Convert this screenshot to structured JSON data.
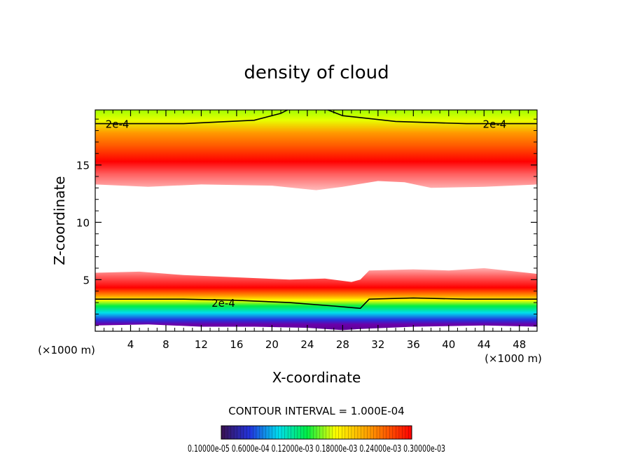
{
  "chart_data": {
    "type": "heatmap",
    "title": "density of cloud",
    "xlabel": "X-coordinate",
    "ylabel": "Z-coordinate",
    "x_unit_left": "(×1000 m)",
    "x_unit_right": "(×1000 m)",
    "xlim": [
      0,
      50
    ],
    "ylim": [
      0.5,
      19.8
    ],
    "x_ticks": [
      4,
      8,
      12,
      16,
      20,
      24,
      28,
      32,
      36,
      40,
      44,
      48
    ],
    "x_tick_labels": [
      "4",
      "8",
      "12",
      "16",
      "20",
      "24",
      "28",
      "32",
      "36",
      "40",
      "44",
      "48"
    ],
    "y_ticks": [
      5,
      10,
      15
    ],
    "y_tick_labels": [
      "5",
      "10",
      "15"
    ],
    "contour_interval_text": "CONTOUR INTERVAL = 1.000E-04",
    "contour_labels": [
      {
        "text": "2e-4",
        "x": 2.5,
        "z": 18.6
      },
      {
        "text": "2e-4",
        "x": 45.2,
        "z": 18.6
      },
      {
        "text": "2e-4",
        "x": 14.5,
        "z": 3.0
      }
    ],
    "colorbar_labels_text": "0.10000e-05 0.6000e-04 0.12000e-03 0.18000e-03 0.24000e-03 0.30000e-03",
    "upper_layer": {
      "bottom_z": [
        [
          0,
          13.3
        ],
        [
          6,
          13.1
        ],
        [
          12,
          13.3
        ],
        [
          20,
          13.2
        ],
        [
          25,
          12.8
        ],
        [
          28,
          13.1
        ],
        [
          32,
          13.6
        ],
        [
          35,
          13.5
        ],
        [
          38,
          13.0
        ],
        [
          44,
          13.1
        ],
        [
          50,
          13.3
        ]
      ],
      "peak_z": 15.3,
      "contour_2e4_z": [
        [
          0,
          18.6
        ],
        [
          10,
          18.6
        ],
        [
          18,
          18.9
        ],
        [
          21,
          19.5
        ],
        [
          22,
          19.9
        ],
        [
          26,
          19.9
        ],
        [
          28,
          19.3
        ],
        [
          34,
          18.8
        ],
        [
          42,
          18.6
        ],
        [
          50,
          18.6
        ]
      ]
    },
    "lower_layer": {
      "top_z": [
        [
          0,
          5.6
        ],
        [
          5,
          5.7
        ],
        [
          10,
          5.4
        ],
        [
          16,
          5.2
        ],
        [
          22,
          5.0
        ],
        [
          26,
          5.1
        ],
        [
          29,
          4.8
        ],
        [
          30,
          5.0
        ],
        [
          31,
          5.8
        ],
        [
          36,
          5.9
        ],
        [
          40,
          5.8
        ],
        [
          44,
          6.0
        ],
        [
          50,
          5.5
        ]
      ],
      "peak_z": 4.3,
      "contour_2e4_z": [
        [
          0,
          3.3
        ],
        [
          5,
          3.3
        ],
        [
          10,
          3.3
        ],
        [
          16,
          3.2
        ],
        [
          22,
          3.0
        ],
        [
          27,
          2.7
        ],
        [
          30,
          2.5
        ],
        [
          31,
          3.3
        ],
        [
          36,
          3.4
        ],
        [
          42,
          3.3
        ],
        [
          50,
          3.3
        ]
      ],
      "bottom_z": [
        [
          0,
          1.0
        ],
        [
          6,
          1.1
        ],
        [
          12,
          0.9
        ],
        [
          18,
          0.9
        ],
        [
          24,
          0.8
        ],
        [
          28,
          0.6
        ],
        [
          30,
          0.7
        ],
        [
          36,
          0.9
        ],
        [
          44,
          1.0
        ],
        [
          50,
          0.9
        ]
      ]
    },
    "colors": {
      "high": "#ff0000",
      "mid_high": "#ff9900",
      "mid": "#ffff00",
      "low_mid": "#00ee44",
      "low": "#00ddee",
      "lowest": "#2233dd",
      "threshold": "#ffc8c8",
      "top_edge": "#a0ff00"
    }
  }
}
